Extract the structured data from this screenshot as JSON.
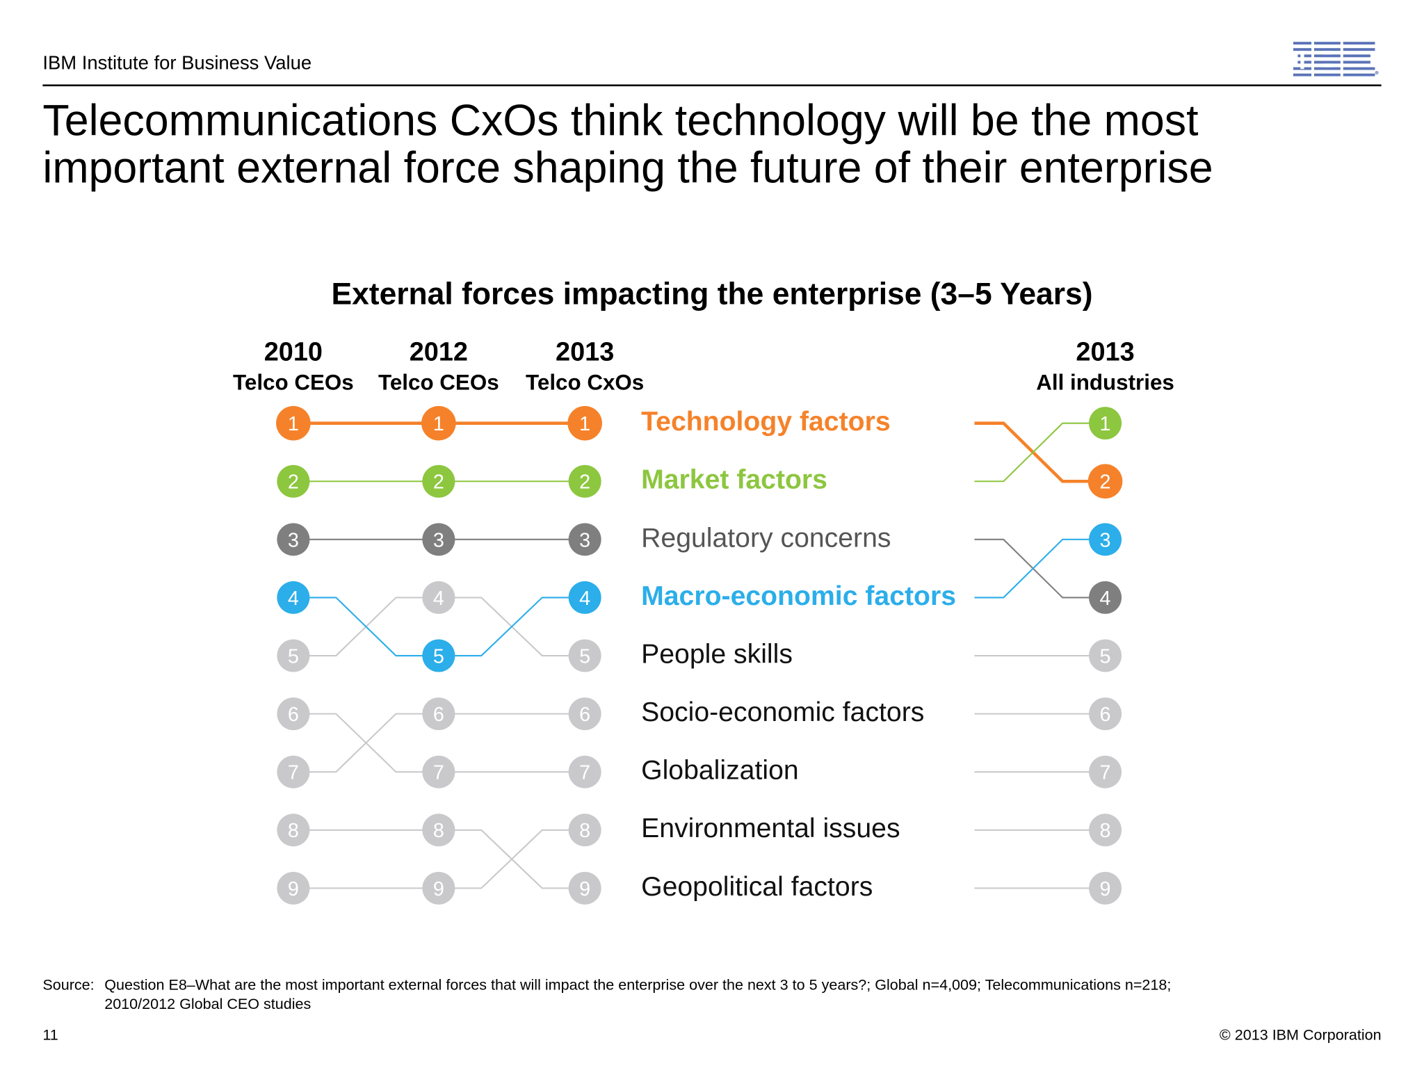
{
  "header": {
    "org": "IBM Institute for Business Value",
    "logo_text": "IBM"
  },
  "title": "Telecommunications CxOs think technology will be the most important external force shaping the future of their enterprise",
  "chart_data": {
    "type": "bump",
    "title": "External forces impacting the enterprise (3–5 Years)",
    "columns": [
      {
        "year": "2010",
        "group": "Telco CEOs"
      },
      {
        "year": "2012",
        "group": "Telco CEOs"
      },
      {
        "year": "2013",
        "group": "Telco CxOs"
      },
      {
        "year": "2013",
        "group": "All industries"
      }
    ],
    "series": [
      {
        "name": "Technology factors",
        "ranks": [
          1,
          1,
          1,
          2
        ],
        "color": "#F5822A",
        "highlight": true
      },
      {
        "name": "Market factors",
        "ranks": [
          2,
          2,
          2,
          1
        ],
        "color": "#8DC63F",
        "highlight": true
      },
      {
        "name": "Regulatory concerns",
        "ranks": [
          3,
          3,
          3,
          4
        ],
        "color": "#7F7F80",
        "highlight": false
      },
      {
        "name": "Macro-economic factors",
        "ranks": [
          4,
          5,
          4,
          3
        ],
        "color": "#2BAEE9",
        "highlight": true
      },
      {
        "name": "People skills",
        "ranks": [
          5,
          4,
          5,
          5
        ],
        "color": "#C9C9CC",
        "highlight": false
      },
      {
        "name": "Socio-economic factors",
        "ranks": [
          7,
          6,
          6,
          6
        ],
        "color": "#C9C9CC",
        "highlight": false
      },
      {
        "name": "Globalization",
        "ranks": [
          6,
          7,
          7,
          7
        ],
        "color": "#C9C9CC",
        "highlight": false
      },
      {
        "name": "Environmental issues",
        "ranks": [
          9,
          9,
          8,
          8
        ],
        "color": "#C9C9CC",
        "highlight": false
      },
      {
        "name": "Geopolitical factors",
        "ranks": [
          8,
          8,
          9,
          9
        ],
        "color": "#C9C9CC",
        "highlight": false
      }
    ]
  },
  "source": {
    "label": "Source:",
    "text_line1": "Question E8–What are the most important external forces that will impact the enterprise over the next 3 to 5 years?; Global n=4,009; Telecommunications n=218;",
    "text_line2": "2010/2012 Global CEO studies"
  },
  "footer": {
    "page": "11",
    "copyright": "© 2013 IBM Corporation"
  }
}
